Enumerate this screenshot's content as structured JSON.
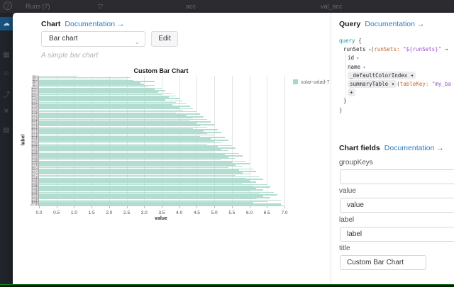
{
  "background": {
    "topbar": {
      "help_icon": "?",
      "runs_label": "Runs (7)",
      "filter_icon": "▽",
      "column_acc": "acc",
      "column_val_acc": "val_acc"
    },
    "sidebar_active_icon": "☁"
  },
  "modal": {
    "chart_panel": {
      "header": {
        "title": "Chart",
        "doc_link": "Documentation →"
      },
      "chart_type_select": {
        "value": "Bar chart",
        "chevron": "⌄"
      },
      "edit_button": "Edit",
      "description": "A simple bar chart"
    },
    "query_panel": {
      "header": {
        "title": "Query",
        "doc_link": "Documentation →"
      },
      "code": {
        "lines": [
          {
            "indent": 0,
            "segs": [
              {
                "t": "query ",
                "c": "kw"
              },
              {
                "t": "{",
                "c": "pl"
              }
            ]
          },
          {
            "indent": 1,
            "segs": [
              {
                "t": "runSets",
                "c": "fld"
              },
              {
                "t": " ▾",
                "c": "car"
              },
              {
                "t": "(",
                "c": "pl"
              },
              {
                "t": "runSets:",
                "c": "arg"
              },
              {
                "t": " \"${runSets}\"",
                "c": "str"
              },
              {
                "t": " →",
                "c": "pl"
              }
            ]
          },
          {
            "indent": 2,
            "segs": [
              {
                "t": "id",
                "c": "fld"
              },
              {
                "t": " ▾",
                "c": "car"
              }
            ]
          },
          {
            "indent": 2,
            "segs": [
              {
                "t": "name",
                "c": "fld"
              },
              {
                "t": " ▾",
                "c": "car"
              }
            ]
          },
          {
            "indent": 2,
            "segs": [
              {
                "t": "_defaultColorIndex ▾",
                "c": "chip"
              }
            ]
          },
          {
            "indent": 2,
            "segs": [
              {
                "t": "summaryTable ▾",
                "c": "chip"
              },
              {
                "t": "(",
                "c": "pl"
              },
              {
                "t": "tableKey:",
                "c": "arg"
              },
              {
                "t": " \"my_ba",
                "c": "str"
              }
            ]
          },
          {
            "indent": 2,
            "segs": [
              {
                "t": "+",
                "c": "chipplus"
              }
            ]
          },
          {
            "indent": 1,
            "segs": [
              {
                "t": "}",
                "c": "pl"
              }
            ]
          },
          {
            "indent": 0,
            "segs": [
              {
                "t": "}",
                "c": "pl"
              }
            ]
          }
        ]
      },
      "chart_fields": {
        "title": "Chart fields",
        "doc_link": "Documentation →",
        "fields": [
          {
            "label": "groupKeys",
            "value": "",
            "short": false
          },
          {
            "label": "value",
            "value": "value",
            "short": false
          },
          {
            "label": "label",
            "value": "label",
            "short": false
          },
          {
            "label": "title",
            "value": "Custom Bar Chart",
            "short": true
          }
        ]
      }
    }
  },
  "chart_data": {
    "type": "bar",
    "orientation": "horizontal",
    "title": "Custom Bar Chart",
    "xlabel": "value",
    "ylabel": "label",
    "xlim": [
      0,
      7
    ],
    "grid": true,
    "legend_position": "right",
    "legend": [
      {
        "name": "solar-salad-7",
        "color": "#a7d8ca"
      }
    ],
    "x_tick_labels": [
      "0.0",
      "0.5",
      "1.0",
      "1.5",
      "2.0",
      "2.5",
      "3.0",
      "3.5",
      "4.0",
      "4.5",
      "5.0",
      "5.5",
      "6.0",
      "6.5",
      "7.0"
    ],
    "y_tick_labels_illegible": true,
    "categories": [
      "item-1",
      "item-2",
      "item-3",
      "item-4",
      "item-5",
      "item-6",
      "item-7",
      "item-8",
      "item-9",
      "item-10",
      "item-11",
      "item-12",
      "item-13",
      "item-14",
      "item-15",
      "item-16",
      "item-17",
      "item-18",
      "item-19",
      "item-20",
      "item-21",
      "item-22",
      "item-23",
      "item-24",
      "item-25",
      "item-26",
      "item-27",
      "item-28",
      "item-29",
      "item-30",
      "item-31",
      "item-32",
      "item-33",
      "item-34",
      "item-35",
      "item-36",
      "item-37",
      "item-38",
      "item-39",
      "item-40",
      "item-41",
      "item-42",
      "item-43",
      "item-44",
      "item-45",
      "item-46",
      "item-47",
      "item-48",
      "item-49",
      "item-50",
      "item-51",
      "item-52",
      "item-53",
      "item-54",
      "item-55",
      "item-56",
      "item-57",
      "item-58",
      "item-59",
      "item-60",
      "item-61",
      "item-62",
      "item-63",
      "item-64",
      "item-65",
      "item-66",
      "item-67",
      "item-68",
      "item-69",
      "item-70",
      "item-71",
      "item-72",
      "item-73",
      "item-74",
      "item-75",
      "item-76",
      "item-77",
      "item-78",
      "item-79",
      "item-80",
      "item-81",
      "item-82",
      "item-83",
      "item-84",
      "item-85",
      "item-86",
      "item-87",
      "item-88",
      "item-89",
      "item-90",
      "item-91",
      "item-92",
      "item-93",
      "item-94",
      "item-95",
      "item-96",
      "item-97",
      "item-98",
      "item-99",
      "item-100"
    ],
    "values": [
      1.1,
      2.6,
      2.5,
      2.7,
      3.3,
      2.9,
      3.0,
      3.3,
      3.1,
      3.5,
      3.3,
      3.6,
      3.4,
      3.8,
      3.5,
      3.9,
      3.7,
      4.0,
      3.6,
      4.1,
      3.9,
      4.2,
      3.8,
      4.3,
      4.0,
      4.4,
      4.1,
      4.5,
      3.9,
      4.6,
      4.2,
      4.7,
      4.4,
      4.8,
      4.3,
      4.9,
      4.5,
      5.0,
      4.6,
      4.8,
      4.4,
      5.1,
      4.7,
      5.2,
      4.8,
      5.0,
      4.6,
      5.3,
      4.9,
      5.4,
      5.0,
      5.2,
      4.8,
      5.5,
      5.1,
      5.6,
      5.2,
      5.4,
      5.0,
      5.7,
      5.3,
      5.8,
      5.4,
      5.6,
      5.2,
      5.9,
      5.5,
      6.0,
      5.6,
      5.8,
      5.4,
      6.1,
      5.7,
      6.2,
      5.8,
      6.0,
      5.6,
      6.3,
      5.9,
      6.4,
      6.0,
      6.2,
      5.8,
      6.5,
      6.1,
      6.6,
      6.2,
      6.4,
      6.0,
      6.7,
      6.3,
      6.8,
      6.4,
      6.6,
      6.2,
      6.9,
      6.5,
      6.1,
      6.9,
      6.9
    ]
  },
  "colors": {
    "bar": "#a7d8ca",
    "link": "#2e7cc1",
    "keyword": "#0d9aa5",
    "argument": "#c0662b",
    "string": "#9b4dca",
    "statusbar_green": "#0d8a1f"
  }
}
